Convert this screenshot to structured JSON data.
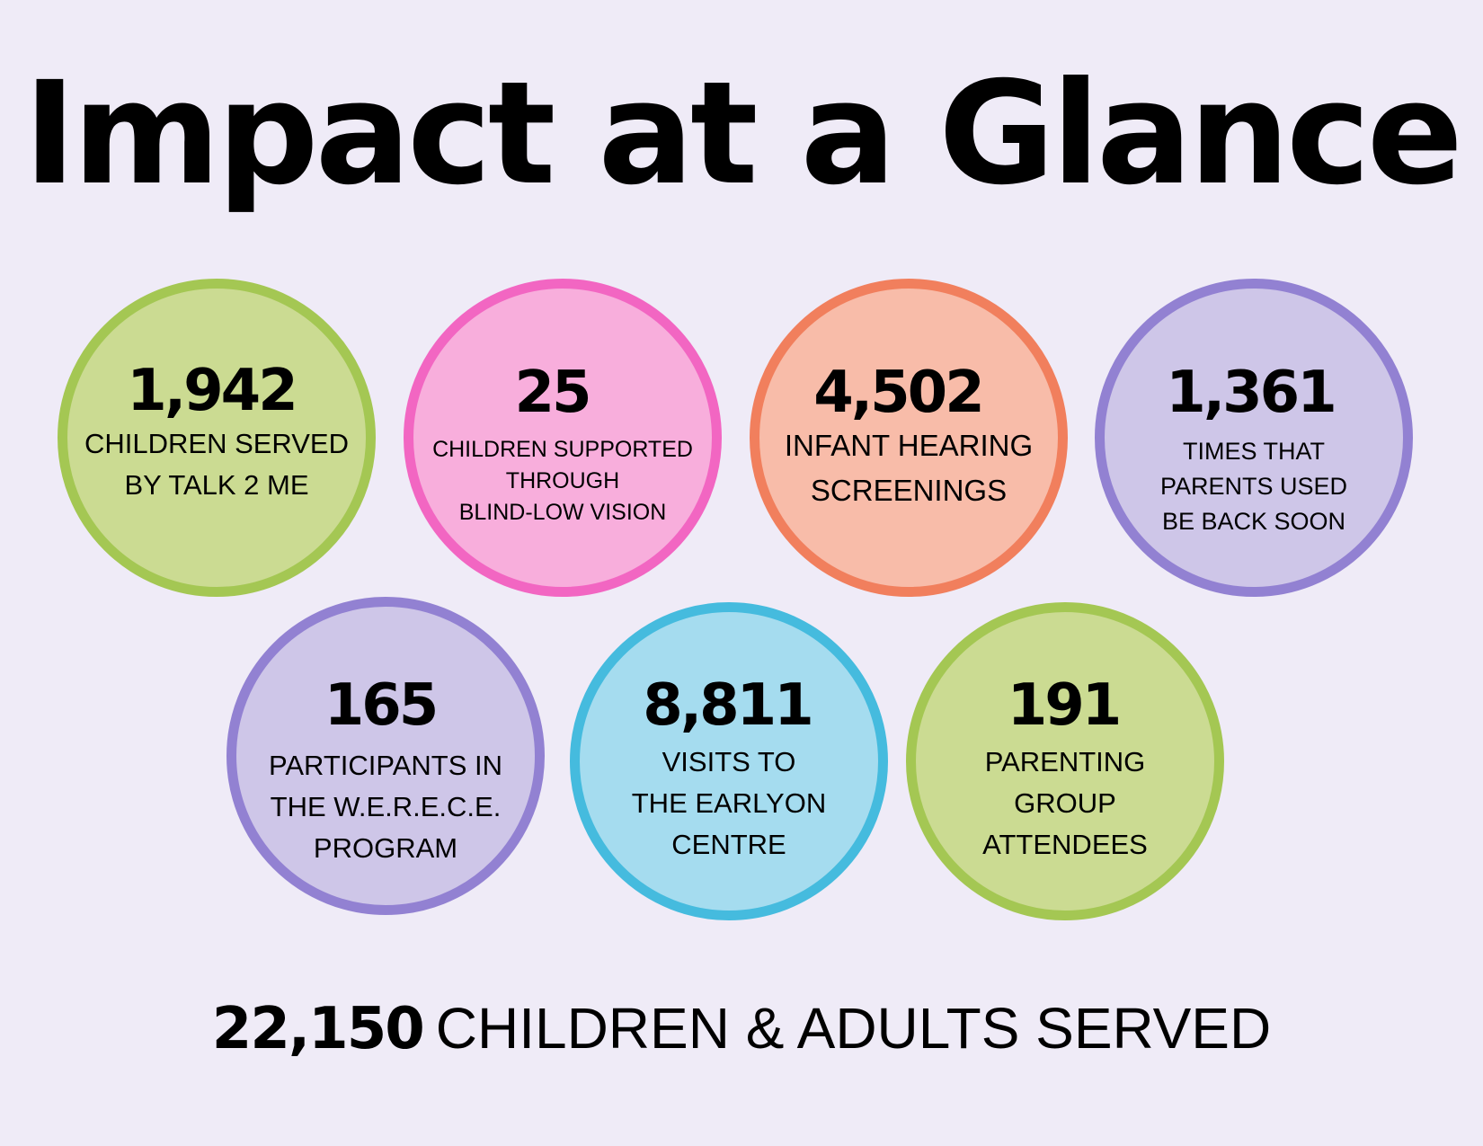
{
  "title": "Impact at a Glance",
  "stats": [
    {
      "value": "1,942",
      "label": "CHILDREN SERVED\nBY TALK 2 ME"
    },
    {
      "value": "25",
      "label": "CHILDREN SUPPORTED\nTHROUGH\nBLIND-LOW VISION"
    },
    {
      "value": "4,502",
      "label": "INFANT HEARING\nSCREENINGS"
    },
    {
      "value": "1,361",
      "label": "TIMES THAT\nPARENTS USED\nBE BACK SOON"
    },
    {
      "value": "165",
      "label": "PARTICIPANTS IN\nTHE W.E.R.E.C.E.\nPROGRAM"
    },
    {
      "value": "8,811",
      "label": "VISITS TO\nTHE EARLYON\nCENTRE"
    },
    {
      "value": "191",
      "label": "PARENTING\nGROUP\nATTENDEES"
    }
  ],
  "footer": {
    "total": "22,150",
    "label": "CHILDREN & ADULTS SERVED"
  },
  "colors": {
    "background": "#efebf7",
    "green_fill": "#cbdb92",
    "green_border": "#a4c753",
    "pink_fill": "#f8aedc",
    "pink_border": "#f266c2",
    "orange_fill": "#f8bca9",
    "orange_border": "#f17f5d",
    "purple_fill": "#cec6e8",
    "purple_border": "#9281d2",
    "blue_fill": "#a5dcef",
    "blue_border": "#45bbde"
  }
}
